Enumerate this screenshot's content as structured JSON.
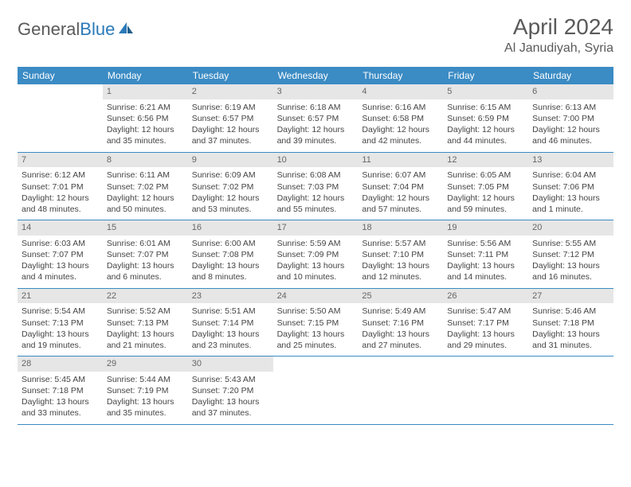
{
  "logo": {
    "text1": "General",
    "text2": "Blue"
  },
  "title": "April 2024",
  "location": "Al Janudiyah, Syria",
  "colors": {
    "header_bg": "#3b8bc4",
    "header_text": "#ffffff",
    "daynum_bg": "#e6e6e6",
    "rule": "#3b8bc4",
    "text": "#444444",
    "title_text": "#5a5a5a",
    "logo_gray": "#5a5a5a",
    "logo_blue": "#2a7ab8"
  },
  "day_names": [
    "Sunday",
    "Monday",
    "Tuesday",
    "Wednesday",
    "Thursday",
    "Friday",
    "Saturday"
  ],
  "weeks": [
    [
      null,
      {
        "n": "1",
        "sr": "6:21 AM",
        "ss": "6:56 PM",
        "dl": "12 hours and 35 minutes."
      },
      {
        "n": "2",
        "sr": "6:19 AM",
        "ss": "6:57 PM",
        "dl": "12 hours and 37 minutes."
      },
      {
        "n": "3",
        "sr": "6:18 AM",
        "ss": "6:57 PM",
        "dl": "12 hours and 39 minutes."
      },
      {
        "n": "4",
        "sr": "6:16 AM",
        "ss": "6:58 PM",
        "dl": "12 hours and 42 minutes."
      },
      {
        "n": "5",
        "sr": "6:15 AM",
        "ss": "6:59 PM",
        "dl": "12 hours and 44 minutes."
      },
      {
        "n": "6",
        "sr": "6:13 AM",
        "ss": "7:00 PM",
        "dl": "12 hours and 46 minutes."
      }
    ],
    [
      {
        "n": "7",
        "sr": "6:12 AM",
        "ss": "7:01 PM",
        "dl": "12 hours and 48 minutes."
      },
      {
        "n": "8",
        "sr": "6:11 AM",
        "ss": "7:02 PM",
        "dl": "12 hours and 50 minutes."
      },
      {
        "n": "9",
        "sr": "6:09 AM",
        "ss": "7:02 PM",
        "dl": "12 hours and 53 minutes."
      },
      {
        "n": "10",
        "sr": "6:08 AM",
        "ss": "7:03 PM",
        "dl": "12 hours and 55 minutes."
      },
      {
        "n": "11",
        "sr": "6:07 AM",
        "ss": "7:04 PM",
        "dl": "12 hours and 57 minutes."
      },
      {
        "n": "12",
        "sr": "6:05 AM",
        "ss": "7:05 PM",
        "dl": "12 hours and 59 minutes."
      },
      {
        "n": "13",
        "sr": "6:04 AM",
        "ss": "7:06 PM",
        "dl": "13 hours and 1 minute."
      }
    ],
    [
      {
        "n": "14",
        "sr": "6:03 AM",
        "ss": "7:07 PM",
        "dl": "13 hours and 4 minutes."
      },
      {
        "n": "15",
        "sr": "6:01 AM",
        "ss": "7:07 PM",
        "dl": "13 hours and 6 minutes."
      },
      {
        "n": "16",
        "sr": "6:00 AM",
        "ss": "7:08 PM",
        "dl": "13 hours and 8 minutes."
      },
      {
        "n": "17",
        "sr": "5:59 AM",
        "ss": "7:09 PM",
        "dl": "13 hours and 10 minutes."
      },
      {
        "n": "18",
        "sr": "5:57 AM",
        "ss": "7:10 PM",
        "dl": "13 hours and 12 minutes."
      },
      {
        "n": "19",
        "sr": "5:56 AM",
        "ss": "7:11 PM",
        "dl": "13 hours and 14 minutes."
      },
      {
        "n": "20",
        "sr": "5:55 AM",
        "ss": "7:12 PM",
        "dl": "13 hours and 16 minutes."
      }
    ],
    [
      {
        "n": "21",
        "sr": "5:54 AM",
        "ss": "7:13 PM",
        "dl": "13 hours and 19 minutes."
      },
      {
        "n": "22",
        "sr": "5:52 AM",
        "ss": "7:13 PM",
        "dl": "13 hours and 21 minutes."
      },
      {
        "n": "23",
        "sr": "5:51 AM",
        "ss": "7:14 PM",
        "dl": "13 hours and 23 minutes."
      },
      {
        "n": "24",
        "sr": "5:50 AM",
        "ss": "7:15 PM",
        "dl": "13 hours and 25 minutes."
      },
      {
        "n": "25",
        "sr": "5:49 AM",
        "ss": "7:16 PM",
        "dl": "13 hours and 27 minutes."
      },
      {
        "n": "26",
        "sr": "5:47 AM",
        "ss": "7:17 PM",
        "dl": "13 hours and 29 minutes."
      },
      {
        "n": "27",
        "sr": "5:46 AM",
        "ss": "7:18 PM",
        "dl": "13 hours and 31 minutes."
      }
    ],
    [
      {
        "n": "28",
        "sr": "5:45 AM",
        "ss": "7:18 PM",
        "dl": "13 hours and 33 minutes."
      },
      {
        "n": "29",
        "sr": "5:44 AM",
        "ss": "7:19 PM",
        "dl": "13 hours and 35 minutes."
      },
      {
        "n": "30",
        "sr": "5:43 AM",
        "ss": "7:20 PM",
        "dl": "13 hours and 37 minutes."
      },
      null,
      null,
      null,
      null
    ]
  ],
  "labels": {
    "sunrise": "Sunrise:",
    "sunset": "Sunset:",
    "daylight": "Daylight:"
  }
}
